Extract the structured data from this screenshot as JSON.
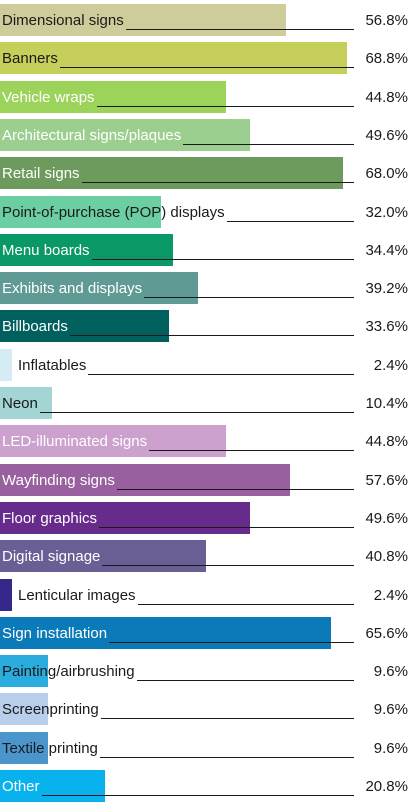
{
  "chart_data": {
    "type": "bar",
    "orientation": "horizontal",
    "xlim": [
      0,
      70
    ],
    "categories": [
      "Dimensional signs",
      "Banners",
      "Vehicle wraps",
      "Architectural signs/plaques",
      "Retail signs",
      "Point-of-purchase (POP) displays",
      "Menu boards",
      "Exhibits and displays",
      "Billboards",
      "Inflatables",
      "Neon",
      "LED-illuminated signs",
      "Wayfinding signs",
      "Floor graphics",
      "Digital signage",
      "Lenticular images",
      "Sign installation",
      "Painting/airbrushing",
      "Screenprinting",
      "Textile printing",
      "Other"
    ],
    "values": [
      56.8,
      68.8,
      44.8,
      49.6,
      68.0,
      32.0,
      34.4,
      39.2,
      33.6,
      2.4,
      10.4,
      44.8,
      57.6,
      49.6,
      40.8,
      2.4,
      65.6,
      9.6,
      9.6,
      9.6,
      20.8
    ],
    "value_labels": [
      "56.8%",
      "68.8%",
      "44.8%",
      "49.6%",
      "68.0%",
      "32.0%",
      "34.4%",
      "39.2%",
      "33.6%",
      "2.4%",
      "10.4%",
      "44.8%",
      "57.6%",
      "49.6%",
      "40.8%",
      "2.4%",
      "65.6%",
      "9.6%",
      "9.6%",
      "9.6%",
      "20.8%"
    ],
    "colors": [
      "#cfcc9b",
      "#c5cf5a",
      "#9bd35b",
      "#9ccf8f",
      "#6d9a5d",
      "#6ccfa3",
      "#0a9866",
      "#5f9a95",
      "#00605e",
      "#d6ecf4",
      "#a2d5d3",
      "#cda1cd",
      "#98609e",
      "#672b8c",
      "#6a5f95",
      "#34288a",
      "#0a7ab8",
      "#2aacdf",
      "#b7cfea",
      "#4b95cd",
      "#08b2ec"
    ],
    "label_colors": [
      "#1a1a1a",
      "#1a1a1a",
      "#ffffff",
      "#ffffff",
      "#ffffff",
      "#1a1a1a",
      "#ffffff",
      "#ffffff",
      "#ffffff",
      "#1a1a1a",
      "#1a1a1a",
      "#ffffff",
      "#ffffff",
      "#ffffff",
      "#ffffff",
      "#1a1a1a",
      "#ffffff",
      "#1a1a1a",
      "#1a1a1a",
      "#1a1a1a",
      "#ffffff"
    ]
  }
}
